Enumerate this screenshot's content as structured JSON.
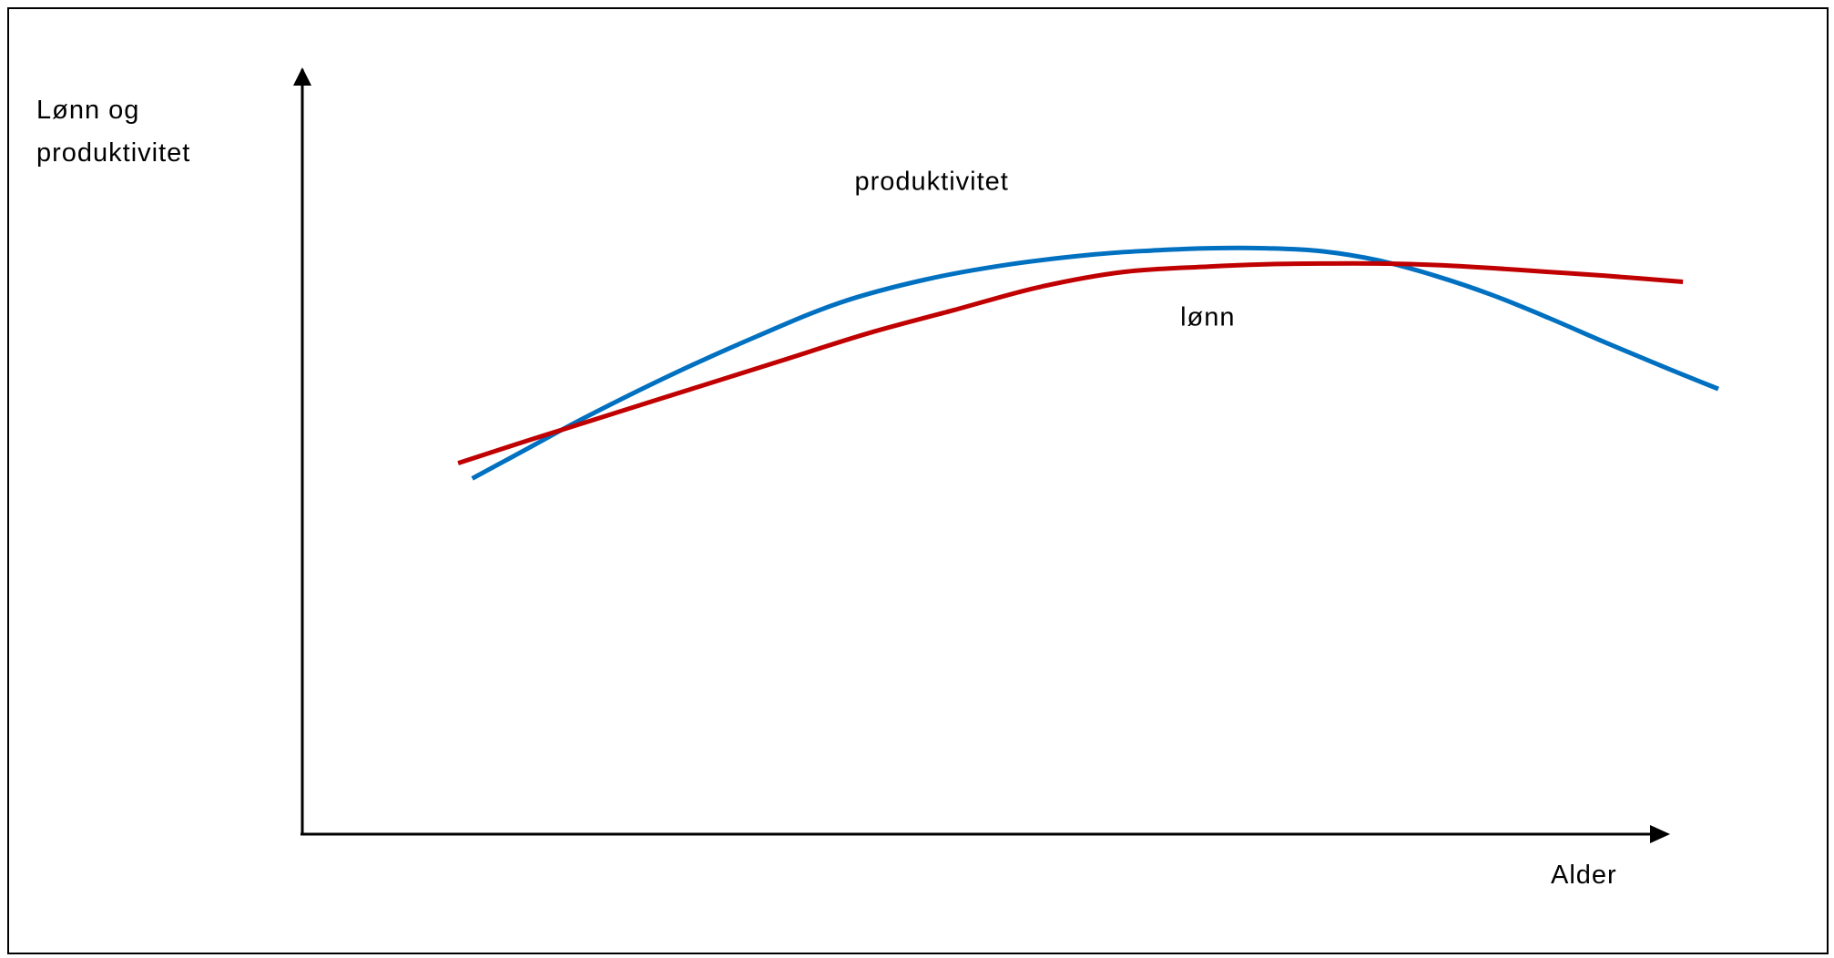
{
  "chart_data": {
    "type": "line",
    "title": "",
    "xlabel": "Alder",
    "ylabel_lines": [
      "Lønn og",
      "produktivitet"
    ],
    "xlim": [
      0,
      100
    ],
    "ylim": [
      0,
      100
    ],
    "ticks": "none",
    "grid": false,
    "series": [
      {
        "name": "produktivitet",
        "color": "#0070c0",
        "x": [
          12,
          16,
          20,
          26,
          32,
          38,
          44,
          50,
          56,
          60,
          64,
          68,
          72,
          76,
          80,
          84,
          88,
          92,
          96,
          100
        ],
        "y": [
          46.5,
          50.5,
          54.5,
          60,
          65,
          69.5,
          72.5,
          74.5,
          75.8,
          76.3,
          76.6,
          76.6,
          76.2,
          75,
          73,
          70.5,
          67.5,
          64.3,
          61.2,
          58.2
        ]
      },
      {
        "name": "lønn",
        "color": "#c00000",
        "x": [
          11,
          16,
          22,
          28,
          34,
          40,
          46,
          52,
          58,
          64,
          68,
          72,
          76,
          80,
          84,
          88,
          92,
          97.5
        ],
        "y": [
          48.5,
          51.5,
          55,
          58.5,
          62,
          65.5,
          68.5,
          71.5,
          73.5,
          74.2,
          74.5,
          74.6,
          74.6,
          74.4,
          74,
          73.5,
          73,
          72.2
        ]
      }
    ],
    "annotations": [
      {
        "text": "produktivitet",
        "x": 39,
        "y": 84.2
      },
      {
        "text": "lønn",
        "x": 62,
        "y": 66.5
      }
    ]
  }
}
